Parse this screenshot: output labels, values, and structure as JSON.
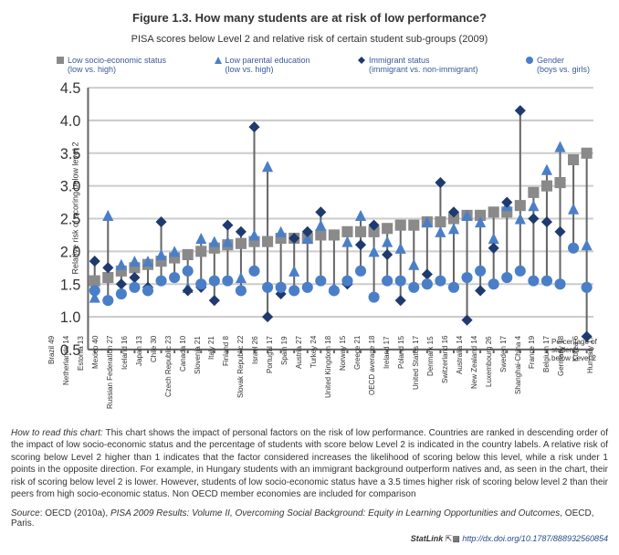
{
  "title": "Figure 1.3. How many students are at risk of low performance?",
  "subtitle": "PISA scores below Level 2 and relative risk of certain student sub-groups (2009)",
  "legend": [
    {
      "label": "Low socio-economic status\n(low vs. high)",
      "marker": "square",
      "color": "#8a8a8a"
    },
    {
      "label": "Low parental education\n(low vs. high)",
      "marker": "triangle",
      "color": "#4a7fc8"
    },
    {
      "label": "Immigrant status\n(immigrant vs. non-immigrant)",
      "marker": "diamond",
      "color": "#1f3a6e"
    },
    {
      "label": "Gender\n(boys vs. girls)",
      "marker": "circle",
      "color": "#4a7fc8"
    }
  ],
  "chart": {
    "ylabel": "Relative risk of scoring below level 2",
    "ymin": 0.5,
    "ymax": 4.5,
    "ystep": 0.5,
    "grid_color": "#cccccc",
    "axis_color": "#666666",
    "background_color": "#ffffff",
    "stem_color": "#666666",
    "stem_width": 1,
    "marker_size": 6,
    "tick_fontsize": 8,
    "ylabel_fontsize": 9,
    "pct_label": "Percentage of\nstudents\nbelow Level 2",
    "countries": [
      {
        "name": "Brazil",
        "pct": 49,
        "ses": 1.55,
        "edu": 1.3,
        "imm": 1.85,
        "gender": 1.4
      },
      {
        "name": "Netherlands",
        "pct": 14,
        "ses": 1.6,
        "edu": 2.55,
        "imm": 1.75,
        "gender": 1.25
      },
      {
        "name": "Estonia",
        "pct": 13,
        "ses": 1.7,
        "edu": 1.8,
        "imm": 1.5,
        "gender": 1.35
      },
      {
        "name": "Mexico",
        "pct": 40,
        "ses": 1.75,
        "edu": 1.85,
        "imm": 1.6,
        "gender": 1.45
      },
      {
        "name": "Russian Federation",
        "pct": 27,
        "ses": 1.8,
        "edu": 1.85,
        "imm": 1.45,
        "gender": 1.4
      },
      {
        "name": "Iceland",
        "pct": 16,
        "ses": 1.85,
        "edu": 1.95,
        "imm": 2.45,
        "gender": 1.55
      },
      {
        "name": "Japan",
        "pct": 13,
        "ses": 1.9,
        "edu": 2.0,
        "imm": null,
        "gender": 1.6
      },
      {
        "name": "Chile",
        "pct": 30,
        "ses": 1.95,
        "edu": 1.45,
        "imm": 1.4,
        "gender": 1.7
      },
      {
        "name": "Czech Republic",
        "pct": 23,
        "ses": 2.0,
        "edu": 2.2,
        "imm": 1.45,
        "gender": 1.5
      },
      {
        "name": "Canada",
        "pct": 10,
        "ses": 2.05,
        "edu": 2.15,
        "imm": 1.25,
        "gender": 1.55
      },
      {
        "name": "Slovenia",
        "pct": 21,
        "ses": 2.1,
        "edu": 2.15,
        "imm": 2.4,
        "gender": 1.55
      },
      {
        "name": "Italy",
        "pct": 21,
        "ses": 2.12,
        "edu": 1.6,
        "imm": 2.3,
        "gender": 1.4
      },
      {
        "name": "Finland",
        "pct": 8,
        "ses": 2.15,
        "edu": 2.25,
        "imm": 3.9,
        "gender": 1.7
      },
      {
        "name": "Slovak Republic",
        "pct": 22,
        "ses": 2.15,
        "edu": 3.3,
        "imm": 1.0,
        "gender": 1.45
      },
      {
        "name": "Israel",
        "pct": 26,
        "ses": 2.2,
        "edu": 2.3,
        "imm": 1.35,
        "gender": 1.45
      },
      {
        "name": "Portugal",
        "pct": 17,
        "ses": 2.2,
        "edu": 1.7,
        "imm": 2.2,
        "gender": 1.4
      },
      {
        "name": "Spain",
        "pct": 19,
        "ses": 2.2,
        "edu": 2.2,
        "imm": 2.3,
        "gender": 1.45
      },
      {
        "name": "Austria",
        "pct": 27,
        "ses": 2.25,
        "edu": 2.4,
        "imm": 2.6,
        "gender": 1.55
      },
      {
        "name": "Turkey",
        "pct": 24,
        "ses": 2.25,
        "edu": 1.45,
        "imm": null,
        "gender": 1.4
      },
      {
        "name": "United Kingdom",
        "pct": 18,
        "ses": 2.3,
        "edu": 2.15,
        "imm": 1.5,
        "gender": 1.55
      },
      {
        "name": "Norway",
        "pct": 15,
        "ses": 2.3,
        "edu": 2.55,
        "imm": 2.1,
        "gender": 1.7
      },
      {
        "name": "Greece",
        "pct": 21,
        "ses": 2.3,
        "edu": 2.0,
        "imm": 2.4,
        "gender": 1.3
      },
      {
        "name": "OECD average",
        "pct": 18,
        "ses": 2.35,
        "edu": 2.15,
        "imm": 1.95,
        "gender": 1.55
      },
      {
        "name": "Ireland",
        "pct": 17,
        "ses": 2.4,
        "edu": 2.05,
        "imm": 1.25,
        "gender": 1.55
      },
      {
        "name": "Poland",
        "pct": 15,
        "ses": 2.4,
        "edu": 1.8,
        "imm": null,
        "gender": 1.45
      },
      {
        "name": "United States",
        "pct": 17,
        "ses": 2.45,
        "edu": 2.45,
        "imm": 1.65,
        "gender": 1.5
      },
      {
        "name": "Denmark",
        "pct": 15,
        "ses": 2.45,
        "edu": 2.3,
        "imm": 3.05,
        "gender": 1.55
      },
      {
        "name": "Switzerland",
        "pct": 16,
        "ses": 2.5,
        "edu": 2.35,
        "imm": 2.6,
        "gender": 1.45
      },
      {
        "name": "Australia",
        "pct": 14,
        "ses": 2.55,
        "edu": 2.55,
        "imm": 0.95,
        "gender": 1.6
      },
      {
        "name": "New Zealand",
        "pct": 14,
        "ses": 2.55,
        "edu": 2.45,
        "imm": 1.4,
        "gender": 1.7
      },
      {
        "name": "Luxembourg",
        "pct": 26,
        "ses": 2.6,
        "edu": 2.2,
        "imm": 2.05,
        "gender": 1.5
      },
      {
        "name": "Sweden",
        "pct": 17,
        "ses": 2.6,
        "edu": 2.7,
        "imm": 2.75,
        "gender": 1.6
      },
      {
        "name": "Shanghai-China",
        "pct": 4,
        "ses": 2.7,
        "edu": 2.5,
        "imm": 4.15,
        "gender": 1.7
      },
      {
        "name": "France",
        "pct": 19,
        "ses": 2.9,
        "edu": 2.7,
        "imm": 2.5,
        "gender": 1.55
      },
      {
        "name": "Belgium",
        "pct": 17,
        "ses": 3.0,
        "edu": 3.25,
        "imm": 2.45,
        "gender": 1.55
      },
      {
        "name": "Germany",
        "pct": 18,
        "ses": 3.05,
        "edu": 3.6,
        "imm": 2.3,
        "gender": 1.5
      },
      {
        "name": "Korea",
        "pct": 6,
        "ses": 3.4,
        "edu": 2.65,
        "imm": null,
        "gender": 2.05
      },
      {
        "name": "Hungary",
        "pct": 17,
        "ses": 3.5,
        "edu": 2.1,
        "imm": 0.7,
        "gender": 1.45
      }
    ]
  },
  "caption": {
    "howto_label": "How to read this chart:",
    "howto_text": " This chart shows the impact of personal factors on the risk of low performance. Countries are ranked in descending order of the impact of low socio-economic status and the percentage of students with score below Level 2 is indicated in the country labels. A relative risk of scoring below Level 2 higher than 1 indicates that the factor considered increases the likelihood of scoring below this level, while a risk under 1 points in the opposite direction. For example, in Hungary students with an immigrant background outperform natives and, as seen in the chart, their risk of scoring below level 2 is lower. However, students of low socio-economic status have a 3.5 times higher risk of scoring below level 2 than their peers from high socio-economic status. Non OECD member economies are included for comparison"
  },
  "source": {
    "label": "Source",
    "citation_a": ": OECD (2010a), ",
    "citation_title": "PISA 2009 Results: Volume II, Overcoming Social Background: Equity in Learning Opportunities and Outcomes",
    "citation_b": ", OECD, Paris."
  },
  "statlink": {
    "brand": "StatLink",
    "url": "http://dx.doi.org/10.1787/888932560854"
  }
}
